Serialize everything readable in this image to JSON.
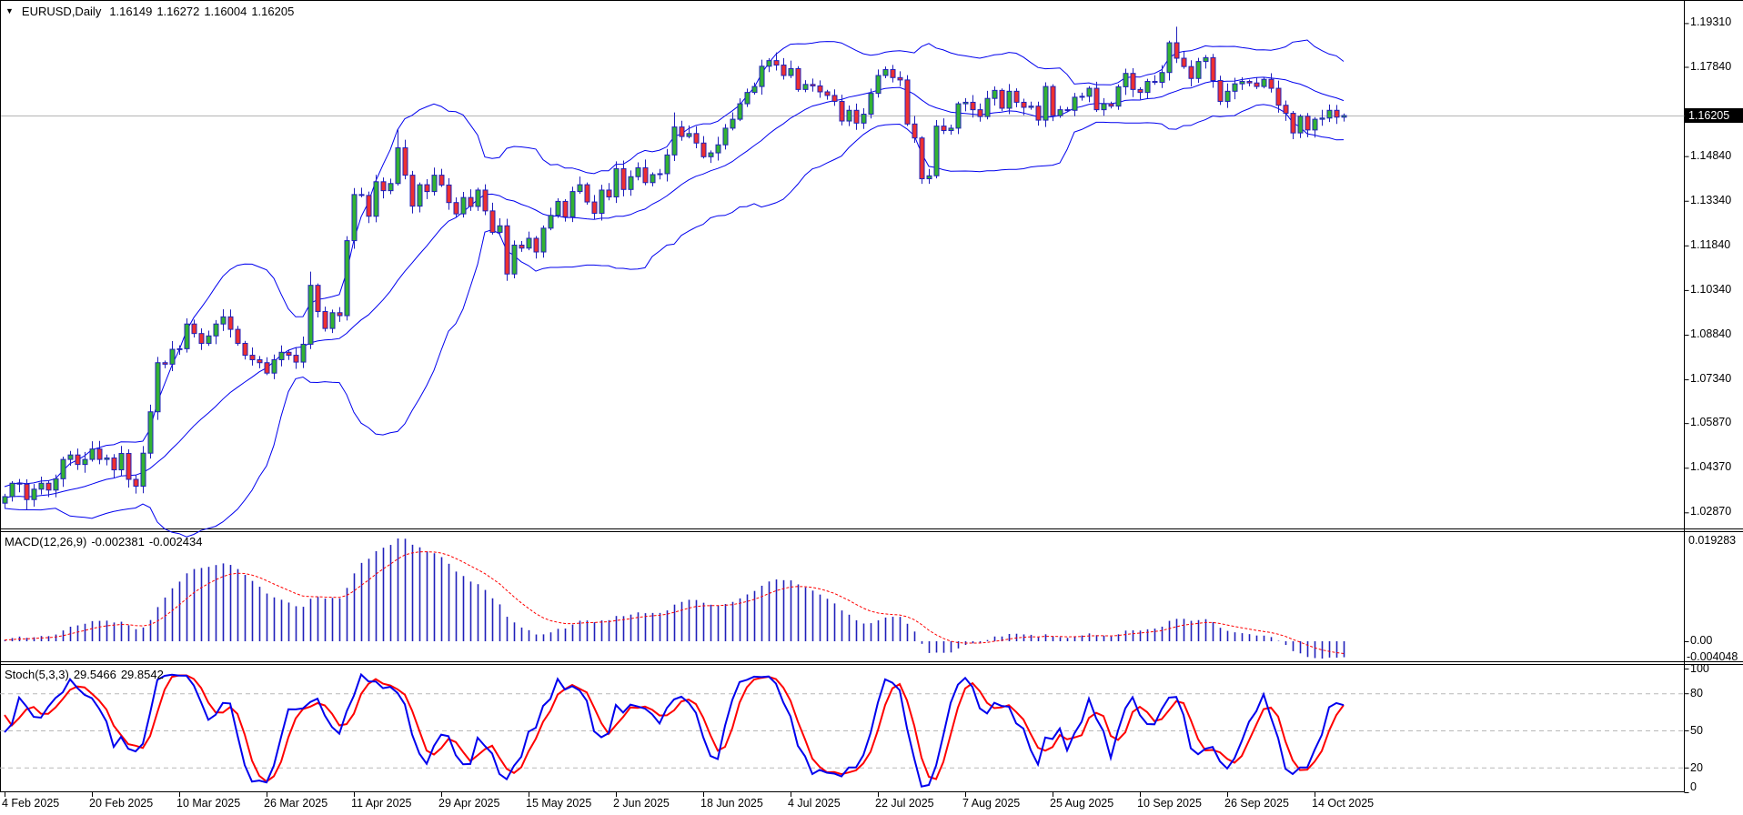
{
  "header": {
    "symbol": "EURUSD,Daily",
    "open": "1.16149",
    "high": "1.16272",
    "low": "1.16004",
    "close": "1.16205"
  },
  "price_axis": {
    "tick_labels": [
      "1.19310",
      "1.17840",
      "1.14840",
      "1.13340",
      "1.11840",
      "1.10340",
      "1.08840",
      "1.07340",
      "1.05870",
      "1.04370",
      "1.02870"
    ],
    "current_price_label": "1.16205"
  },
  "macd_panel": {
    "title": "MACD(12,26,9)",
    "value_main": "-0.002381",
    "value_signal": "-0.002434",
    "axis_max_label": "0.019283",
    "axis_zero_label": "0.00",
    "axis_min_label": "-0.004048"
  },
  "stoch_panel": {
    "title": "Stoch(5,3,3)",
    "value_main": "29.5466",
    "value_signal": "29.8542",
    "axis_labels": [
      "100",
      "80",
      "50",
      "20",
      "0"
    ],
    "axis_values": [
      100,
      80,
      50,
      20,
      0
    ],
    "grid_levels": [
      80,
      50,
      20
    ]
  },
  "colors": {
    "background": "#ffffff",
    "candle_up_fill": "#33b333",
    "candle_down_fill": "#ee3030",
    "candle_border": "#2020bb",
    "bollinger": "#0000ee",
    "macd_histogram": "#2020bb",
    "macd_signal": "#ff0000",
    "stoch_main": "#0000ee",
    "stoch_signal": "#ff0000",
    "grid_dashed": "#b8b8b8",
    "current_price_line": "#b4b4b4",
    "badge_bg": "#000000",
    "badge_text": "#ffffff"
  },
  "chart_data": {
    "type": "candlestick",
    "symbol": "EURUSD",
    "timeframe": "Daily",
    "title": "EURUSD,Daily  1.16149 1.16272 1.16004 1.16205",
    "bars": 185,
    "x_tick_labels": [
      "4 Feb 2025",
      "20 Feb 2025",
      "10 Mar 2025",
      "26 Mar 2025",
      "11 Apr 2025",
      "29 Apr 2025",
      "15 May 2025",
      "2 Jun 2025",
      "18 Jun 2025",
      "4 Jul 2025",
      "22 Jul 2025",
      "7 Aug 2025",
      "25 Aug 2025",
      "10 Sep 2025",
      "26 Sep 2025",
      "14 Oct 2025"
    ],
    "bars_per_x_tick": 12,
    "y_axis_range": {
      "top": 1.2003,
      "bottom": 1.0236
    },
    "y_tick_labels": [
      "1.19310",
      "1.17840",
      "1.14840",
      "1.13340",
      "1.11840",
      "1.10340",
      "1.08840",
      "1.07340",
      "1.05870",
      "1.04370",
      "1.02870"
    ],
    "closes": [
      1.034,
      1.0385,
      1.0382,
      1.033,
      1.0365,
      1.0385,
      1.0362,
      1.04,
      1.0465,
      1.048,
      1.0448,
      1.0465,
      1.05,
      1.0465,
      1.047,
      1.043,
      1.0485,
      1.0398,
      1.0375,
      1.0486,
      1.0625,
      1.079,
      1.0785,
      1.0835,
      1.0837,
      1.092,
      1.0888,
      1.0855,
      1.088,
      1.092,
      1.0944,
      1.0902,
      1.0855,
      1.0815,
      1.08,
      1.079,
      1.0755,
      1.08,
      1.0825,
      1.0815,
      1.0792,
      1.0852,
      1.105,
      1.0962,
      1.0905,
      1.0958,
      1.0948,
      1.12,
      1.1355,
      1.1352,
      1.1282,
      1.1398,
      1.1368,
      1.1392,
      1.1512,
      1.142,
      1.1316,
      1.1388,
      1.1365,
      1.142,
      1.1387,
      1.1328,
      1.129,
      1.1345,
      1.1315,
      1.137,
      1.13,
      1.1228,
      1.125,
      1.1088,
      1.1185,
      1.1175,
      1.1208,
      1.1162,
      1.1242,
      1.1285,
      1.1332,
      1.128,
      1.1365,
      1.1388,
      1.133,
      1.1292,
      1.137,
      1.1347,
      1.1442,
      1.1372,
      1.1415,
      1.1445,
      1.1395,
      1.1422,
      1.1425,
      1.1488,
      1.1582,
      1.155,
      1.156,
      1.1528,
      1.1482,
      1.1495,
      1.1522,
      1.1578,
      1.1608,
      1.166,
      1.1698,
      1.1718,
      1.1786,
      1.1805,
      1.179,
      1.1755,
      1.1778,
      1.1708,
      1.1725,
      1.172,
      1.17,
      1.1688,
      1.1668,
      1.1602,
      1.1638,
      1.1595,
      1.1625,
      1.1695,
      1.1755,
      1.1775,
      1.1748,
      1.174,
      1.1592,
      1.1545,
      1.1408,
      1.1418,
      1.1585,
      1.157,
      1.1578,
      1.166,
      1.1665,
      1.164,
      1.1617,
      1.1678,
      1.1705,
      1.1645,
      1.1702,
      1.1665,
      1.1648,
      1.1652,
      1.1605,
      1.1718,
      1.162,
      1.164,
      1.1638,
      1.1682,
      1.1685,
      1.1712,
      1.164,
      1.166,
      1.1652,
      1.1717,
      1.1762,
      1.1708,
      1.1698,
      1.1735,
      1.1732,
      1.1765,
      1.1865,
      1.1813,
      1.1785,
      1.1745,
      1.1802,
      1.1815,
      1.1738,
      1.1668,
      1.1702,
      1.1727,
      1.1735,
      1.173,
      1.1718,
      1.1742,
      1.1712,
      1.1655,
      1.1628,
      1.1562,
      1.1618,
      1.1572,
      1.1608,
      1.1612,
      1.1638,
      1.1615,
      1.16205
    ],
    "first_open": 1.0318,
    "last_bar": {
      "open": 1.16149,
      "high": 1.16272,
      "low": 1.16004,
      "close": 1.16205
    },
    "wick_overrides": [
      {
        "i": 0,
        "low": 1.0302
      },
      {
        "i": 3,
        "low": 1.0295
      },
      {
        "i": 20,
        "low": 1.0468
      },
      {
        "i": 42,
        "high": 1.1096
      },
      {
        "i": 47,
        "high": 1.1215
      },
      {
        "i": 54,
        "high": 1.1573
      },
      {
        "i": 69,
        "low": 1.1065
      },
      {
        "i": 92,
        "high": 1.1631
      },
      {
        "i": 126,
        "low": 1.1391
      },
      {
        "i": 160,
        "high": 1.1872
      },
      {
        "i": 161,
        "high": 1.1919
      },
      {
        "i": 177,
        "low": 1.1541
      }
    ],
    "indicators": [
      {
        "name": "Bollinger Bands",
        "period": 20,
        "deviation": 2
      },
      {
        "name": "MACD",
        "fast": 12,
        "slow": 26,
        "signal": 9,
        "current_main": -0.002381,
        "current_signal": -0.002434,
        "axis_max": 0.019283,
        "axis_min": -0.004048
      },
      {
        "name": "Stochastic",
        "k": 5,
        "d": 3,
        "slowing": 3,
        "current_main": 29.5466,
        "current_signal": 29.8542,
        "levels": [
          20,
          50,
          80
        ]
      }
    ]
  }
}
